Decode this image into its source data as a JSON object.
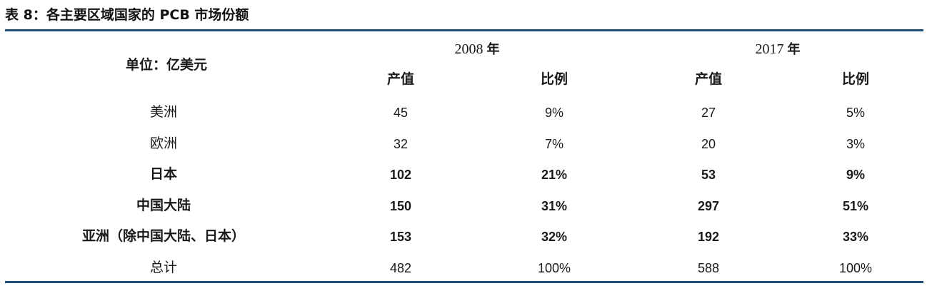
{
  "title": "表 8：各主要区域国家的 PCB 市场份额",
  "unit_label": "单位：亿美元",
  "years": [
    {
      "year": "2008",
      "suffix": "年"
    },
    {
      "year": "2017",
      "suffix": "年"
    }
  ],
  "subheaders": [
    "产值",
    "比例",
    "产值",
    "比例"
  ],
  "rows": [
    {
      "region": "美洲",
      "bold": false,
      "values": [
        "45",
        "9%",
        "27",
        "5%"
      ]
    },
    {
      "region": "欧洲",
      "bold": false,
      "values": [
        "32",
        "7%",
        "20",
        "3%"
      ]
    },
    {
      "region": "日本",
      "bold": true,
      "values": [
        "102",
        "21%",
        "53",
        "9%"
      ]
    },
    {
      "region": "中国大陆",
      "bold": true,
      "values": [
        "150",
        "31%",
        "297",
        "51%"
      ]
    },
    {
      "region": "亚洲（除中国大陆、日本）",
      "bold": true,
      "values": [
        "153",
        "32%",
        "192",
        "33%"
      ]
    },
    {
      "region": "总计",
      "bold": false,
      "values": [
        "482",
        "100%",
        "588",
        "100%"
      ]
    }
  ],
  "colors": {
    "rule": "#1f4e79",
    "text": "#1a1a1a"
  }
}
